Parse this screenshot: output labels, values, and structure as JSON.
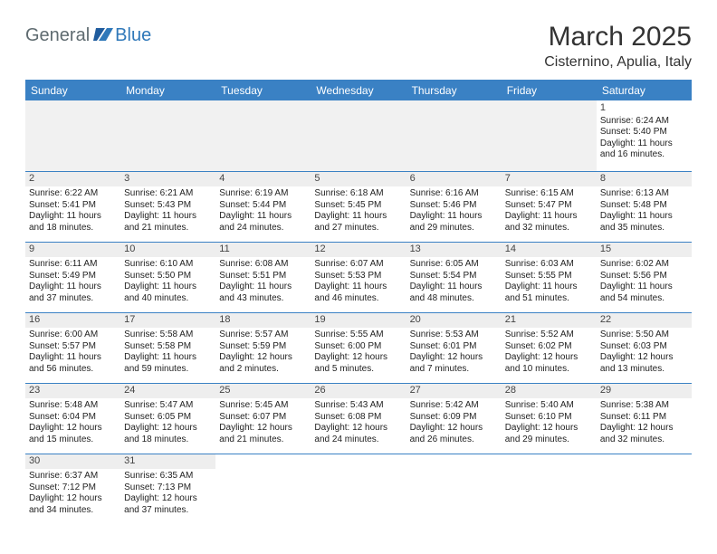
{
  "logo": {
    "general": "General",
    "blue": "Blue"
  },
  "header": {
    "title": "March 2025",
    "location": "Cisternino, Apulia, Italy"
  },
  "colors": {
    "header_bg": "#3a81c4",
    "grid_line": "#3a81c4",
    "stripe": "#eeeeee"
  },
  "daynames": [
    "Sunday",
    "Monday",
    "Tuesday",
    "Wednesday",
    "Thursday",
    "Friday",
    "Saturday"
  ],
  "weeks": [
    [
      {
        "n": "",
        "sr": "",
        "ss": "",
        "dl": ""
      },
      {
        "n": "",
        "sr": "",
        "ss": "",
        "dl": ""
      },
      {
        "n": "",
        "sr": "",
        "ss": "",
        "dl": ""
      },
      {
        "n": "",
        "sr": "",
        "ss": "",
        "dl": ""
      },
      {
        "n": "",
        "sr": "",
        "ss": "",
        "dl": ""
      },
      {
        "n": "",
        "sr": "",
        "ss": "",
        "dl": ""
      },
      {
        "n": "1",
        "sr": "Sunrise: 6:24 AM",
        "ss": "Sunset: 5:40 PM",
        "dl": "Daylight: 11 hours and 16 minutes."
      }
    ],
    [
      {
        "n": "2",
        "sr": "Sunrise: 6:22 AM",
        "ss": "Sunset: 5:41 PM",
        "dl": "Daylight: 11 hours and 18 minutes."
      },
      {
        "n": "3",
        "sr": "Sunrise: 6:21 AM",
        "ss": "Sunset: 5:43 PM",
        "dl": "Daylight: 11 hours and 21 minutes."
      },
      {
        "n": "4",
        "sr": "Sunrise: 6:19 AM",
        "ss": "Sunset: 5:44 PM",
        "dl": "Daylight: 11 hours and 24 minutes."
      },
      {
        "n": "5",
        "sr": "Sunrise: 6:18 AM",
        "ss": "Sunset: 5:45 PM",
        "dl": "Daylight: 11 hours and 27 minutes."
      },
      {
        "n": "6",
        "sr": "Sunrise: 6:16 AM",
        "ss": "Sunset: 5:46 PM",
        "dl": "Daylight: 11 hours and 29 minutes."
      },
      {
        "n": "7",
        "sr": "Sunrise: 6:15 AM",
        "ss": "Sunset: 5:47 PM",
        "dl": "Daylight: 11 hours and 32 minutes."
      },
      {
        "n": "8",
        "sr": "Sunrise: 6:13 AM",
        "ss": "Sunset: 5:48 PM",
        "dl": "Daylight: 11 hours and 35 minutes."
      }
    ],
    [
      {
        "n": "9",
        "sr": "Sunrise: 6:11 AM",
        "ss": "Sunset: 5:49 PM",
        "dl": "Daylight: 11 hours and 37 minutes."
      },
      {
        "n": "10",
        "sr": "Sunrise: 6:10 AM",
        "ss": "Sunset: 5:50 PM",
        "dl": "Daylight: 11 hours and 40 minutes."
      },
      {
        "n": "11",
        "sr": "Sunrise: 6:08 AM",
        "ss": "Sunset: 5:51 PM",
        "dl": "Daylight: 11 hours and 43 minutes."
      },
      {
        "n": "12",
        "sr": "Sunrise: 6:07 AM",
        "ss": "Sunset: 5:53 PM",
        "dl": "Daylight: 11 hours and 46 minutes."
      },
      {
        "n": "13",
        "sr": "Sunrise: 6:05 AM",
        "ss": "Sunset: 5:54 PM",
        "dl": "Daylight: 11 hours and 48 minutes."
      },
      {
        "n": "14",
        "sr": "Sunrise: 6:03 AM",
        "ss": "Sunset: 5:55 PM",
        "dl": "Daylight: 11 hours and 51 minutes."
      },
      {
        "n": "15",
        "sr": "Sunrise: 6:02 AM",
        "ss": "Sunset: 5:56 PM",
        "dl": "Daylight: 11 hours and 54 minutes."
      }
    ],
    [
      {
        "n": "16",
        "sr": "Sunrise: 6:00 AM",
        "ss": "Sunset: 5:57 PM",
        "dl": "Daylight: 11 hours and 56 minutes."
      },
      {
        "n": "17",
        "sr": "Sunrise: 5:58 AM",
        "ss": "Sunset: 5:58 PM",
        "dl": "Daylight: 11 hours and 59 minutes."
      },
      {
        "n": "18",
        "sr": "Sunrise: 5:57 AM",
        "ss": "Sunset: 5:59 PM",
        "dl": "Daylight: 12 hours and 2 minutes."
      },
      {
        "n": "19",
        "sr": "Sunrise: 5:55 AM",
        "ss": "Sunset: 6:00 PM",
        "dl": "Daylight: 12 hours and 5 minutes."
      },
      {
        "n": "20",
        "sr": "Sunrise: 5:53 AM",
        "ss": "Sunset: 6:01 PM",
        "dl": "Daylight: 12 hours and 7 minutes."
      },
      {
        "n": "21",
        "sr": "Sunrise: 5:52 AM",
        "ss": "Sunset: 6:02 PM",
        "dl": "Daylight: 12 hours and 10 minutes."
      },
      {
        "n": "22",
        "sr": "Sunrise: 5:50 AM",
        "ss": "Sunset: 6:03 PM",
        "dl": "Daylight: 12 hours and 13 minutes."
      }
    ],
    [
      {
        "n": "23",
        "sr": "Sunrise: 5:48 AM",
        "ss": "Sunset: 6:04 PM",
        "dl": "Daylight: 12 hours and 15 minutes."
      },
      {
        "n": "24",
        "sr": "Sunrise: 5:47 AM",
        "ss": "Sunset: 6:05 PM",
        "dl": "Daylight: 12 hours and 18 minutes."
      },
      {
        "n": "25",
        "sr": "Sunrise: 5:45 AM",
        "ss": "Sunset: 6:07 PM",
        "dl": "Daylight: 12 hours and 21 minutes."
      },
      {
        "n": "26",
        "sr": "Sunrise: 5:43 AM",
        "ss": "Sunset: 6:08 PM",
        "dl": "Daylight: 12 hours and 24 minutes."
      },
      {
        "n": "27",
        "sr": "Sunrise: 5:42 AM",
        "ss": "Sunset: 6:09 PM",
        "dl": "Daylight: 12 hours and 26 minutes."
      },
      {
        "n": "28",
        "sr": "Sunrise: 5:40 AM",
        "ss": "Sunset: 6:10 PM",
        "dl": "Daylight: 12 hours and 29 minutes."
      },
      {
        "n": "29",
        "sr": "Sunrise: 5:38 AM",
        "ss": "Sunset: 6:11 PM",
        "dl": "Daylight: 12 hours and 32 minutes."
      }
    ],
    [
      {
        "n": "30",
        "sr": "Sunrise: 6:37 AM",
        "ss": "Sunset: 7:12 PM",
        "dl": "Daylight: 12 hours and 34 minutes."
      },
      {
        "n": "31",
        "sr": "Sunrise: 6:35 AM",
        "ss": "Sunset: 7:13 PM",
        "dl": "Daylight: 12 hours and 37 minutes."
      },
      {
        "n": "",
        "sr": "",
        "ss": "",
        "dl": ""
      },
      {
        "n": "",
        "sr": "",
        "ss": "",
        "dl": ""
      },
      {
        "n": "",
        "sr": "",
        "ss": "",
        "dl": ""
      },
      {
        "n": "",
        "sr": "",
        "ss": "",
        "dl": ""
      },
      {
        "n": "",
        "sr": "",
        "ss": "",
        "dl": ""
      }
    ]
  ]
}
